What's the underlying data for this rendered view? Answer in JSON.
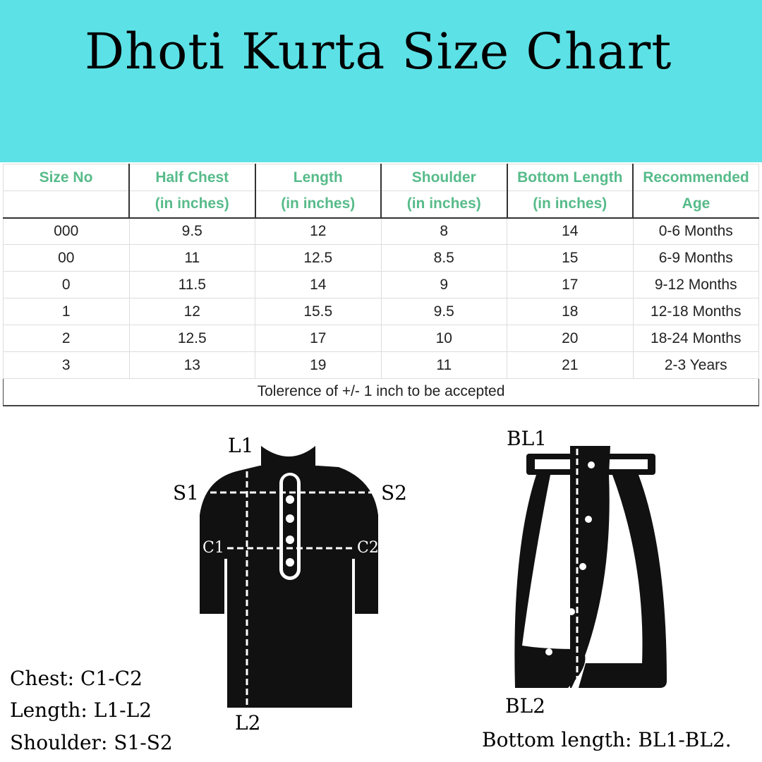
{
  "title": "Dhoti Kurta Size Chart",
  "table": {
    "headers": [
      [
        "Size No",
        ""
      ],
      [
        "Half Chest",
        "(in inches)"
      ],
      [
        "Length",
        "(in inches)"
      ],
      [
        "Shoulder",
        "(in inches)"
      ],
      [
        "Bottom Length",
        "(in inches)"
      ],
      [
        "Recommended",
        "Age"
      ]
    ],
    "rows": [
      [
        "000",
        "9.5",
        "12",
        "8",
        "14",
        "0-6 Months"
      ],
      [
        "00",
        "11",
        "12.5",
        "8.5",
        "15",
        "6-9 Months"
      ],
      [
        "0",
        "11.5",
        "14",
        "9",
        "17",
        "9-12 Months"
      ],
      [
        "1",
        "12",
        "15.5",
        "9.5",
        "18",
        "12-18 Months"
      ],
      [
        "2",
        "12.5",
        "17",
        "10",
        "20",
        "18-24 Months"
      ],
      [
        "3",
        "13",
        "19",
        "11",
        "21",
        "2-3 Years"
      ]
    ],
    "footer": "Tolerence of +/- 1 inch to be accepted"
  },
  "kurta_labels": {
    "l1": "L1",
    "l2": "L2",
    "s1": "S1",
    "s2": "S2",
    "c1": "C1",
    "c2": "C2"
  },
  "dhoti_labels": {
    "bl1": "BL1",
    "bl2": "BL2"
  },
  "legend": {
    "chest": "Chest: C1-C2",
    "length": "Length: L1-L2",
    "shoulder": "Shoulder: S1-S2",
    "bottom": "Bottom length: BL1-BL2."
  },
  "colors": {
    "banner": "#5ce1e6",
    "header_text": "#57bb8a"
  }
}
